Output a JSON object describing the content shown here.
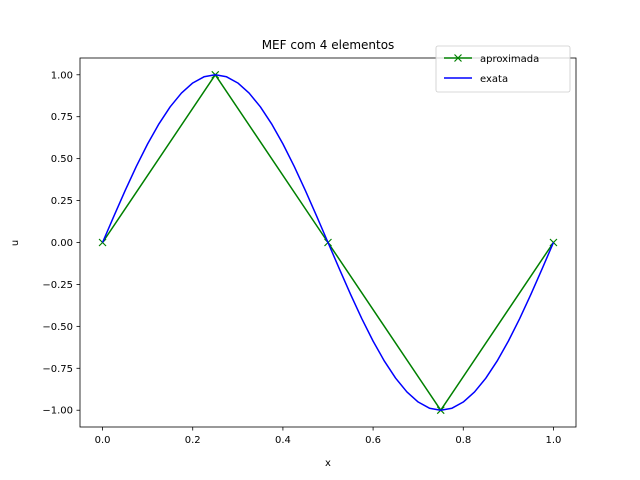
{
  "chart_data": {
    "type": "line",
    "title": "MEF com 4 elementos",
    "xlabel": "x",
    "ylabel": "u",
    "xlim": [
      -0.05,
      1.05
    ],
    "ylim": [
      -1.1,
      1.1
    ],
    "xticks": [
      0.0,
      0.2,
      0.4,
      0.6,
      0.8,
      1.0
    ],
    "xtick_labels": [
      "0.0",
      "0.2",
      "0.4",
      "0.6",
      "0.8",
      "1.0"
    ],
    "yticks": [
      -1.0,
      -0.75,
      -0.5,
      -0.25,
      0.0,
      0.25,
      0.5,
      0.75,
      1.0
    ],
    "ytick_labels": [
      "−1.00",
      "−0.75",
      "−0.50",
      "−0.25",
      "0.00",
      "0.25",
      "0.50",
      "0.75",
      "1.00"
    ],
    "grid": false,
    "legend_position": "top-right",
    "series": [
      {
        "name": "aproximada",
        "color": "#008000",
        "marker": "x",
        "x": [
          0.0,
          0.25,
          0.5,
          0.75,
          1.0
        ],
        "y": [
          0.0,
          1.0,
          0.0,
          -1.0,
          0.0
        ]
      },
      {
        "name": "exata",
        "color": "#0000ff",
        "marker": "none",
        "x": [
          0.0,
          0.025,
          0.05,
          0.075,
          0.1,
          0.125,
          0.15,
          0.175,
          0.2,
          0.225,
          0.25,
          0.275,
          0.3,
          0.325,
          0.35,
          0.375,
          0.4,
          0.425,
          0.45,
          0.475,
          0.5,
          0.525,
          0.55,
          0.575,
          0.6,
          0.625,
          0.65,
          0.675,
          0.7,
          0.725,
          0.75,
          0.775,
          0.8,
          0.825,
          0.85,
          0.875,
          0.9,
          0.925,
          0.95,
          0.975,
          1.0
        ],
        "y": [
          0.0,
          0.156,
          0.309,
          0.454,
          0.588,
          0.707,
          0.809,
          0.891,
          0.951,
          0.988,
          1.0,
          0.988,
          0.951,
          0.891,
          0.809,
          0.707,
          0.588,
          0.454,
          0.309,
          0.156,
          0.0,
          -0.156,
          -0.309,
          -0.454,
          -0.588,
          -0.707,
          -0.809,
          -0.891,
          -0.951,
          -0.988,
          -1.0,
          -0.988,
          -0.951,
          -0.891,
          -0.809,
          -0.707,
          -0.588,
          -0.454,
          -0.309,
          -0.156,
          0.0
        ]
      }
    ]
  }
}
